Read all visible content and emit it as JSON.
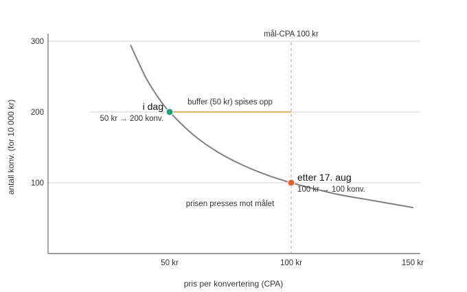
{
  "chart_data": {
    "type": "line",
    "xlabel": "pris per konvertering (CPA)",
    "ylabel": "antall konv. (for 10 000 kr)",
    "xlim": [
      0,
      150
    ],
    "ylim": [
      0,
      300
    ],
    "x_ticks": [
      {
        "value": 50,
        "label": "50 kr"
      },
      {
        "value": 100,
        "label": "100 kr"
      },
      {
        "value": 150,
        "label": "150 kr"
      }
    ],
    "y_ticks": [
      {
        "value": 100,
        "label": "100"
      },
      {
        "value": 200,
        "label": "200"
      },
      {
        "value": 300,
        "label": "300"
      }
    ],
    "grid": "horizontal",
    "series": [
      {
        "color": "#7f7f7f",
        "points": [
          [
            34,
            294
          ],
          [
            40,
            250
          ],
          [
            45,
            222
          ],
          [
            50,
            200
          ],
          [
            60,
            167
          ],
          [
            70,
            143
          ],
          [
            80,
            125
          ],
          [
            90,
            111
          ],
          [
            100,
            100
          ],
          [
            110,
            91
          ],
          [
            120,
            83
          ],
          [
            130,
            77
          ],
          [
            140,
            71
          ],
          [
            150,
            65
          ]
        ]
      }
    ],
    "reference_line": {
      "x": 100,
      "label": "mål-CPA 100 kr",
      "style": "dashed"
    },
    "buffer_line": {
      "x_from": 50,
      "x_to": 100,
      "y": 200,
      "color": "#d99a3a",
      "label": "buffer (50 kr) spises opp"
    },
    "markers": [
      {
        "x": 50,
        "y": 200,
        "color": "#1f9e77",
        "title": "i dag",
        "detail": "50 kr → 200 konv."
      },
      {
        "x": 100,
        "y": 100,
        "color": "#e0602f",
        "title": "etter 17. aug",
        "detail": "100 kr → 100 konv."
      }
    ],
    "annotations": [
      {
        "text": "prisen presses mot målet"
      }
    ]
  }
}
